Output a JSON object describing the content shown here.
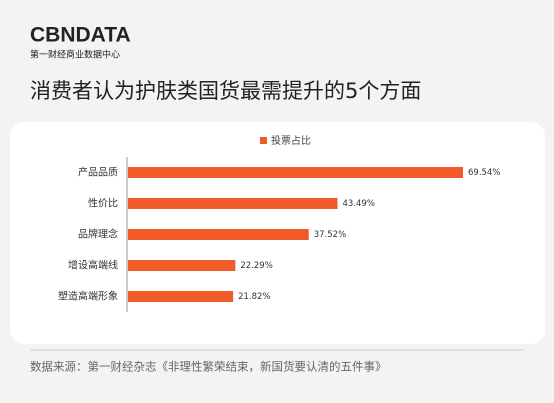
{
  "brand": {
    "logo": "CBNDATA",
    "subtitle": "第一财经商业数据中心"
  },
  "chart_data": {
    "type": "bar",
    "orientation": "horizontal",
    "title": "消费者认为护肤类国货最需提升的5个方面",
    "categories": [
      "产品品质",
      "性价比",
      "品牌理念",
      "增设高端线",
      "塑造高端形象"
    ],
    "series": [
      {
        "name": "投票占比",
        "color": "#f15a29",
        "values": [
          69.54,
          43.49,
          37.52,
          22.29,
          21.82
        ],
        "value_labels": [
          "69.54%",
          "43.49%",
          "37.52%",
          "22.29%",
          "21.82%"
        ]
      }
    ],
    "legend": "top"
  },
  "source": "数据来源：第一财经杂志《非理性繁荣结束，新国货要认清的五件事》"
}
